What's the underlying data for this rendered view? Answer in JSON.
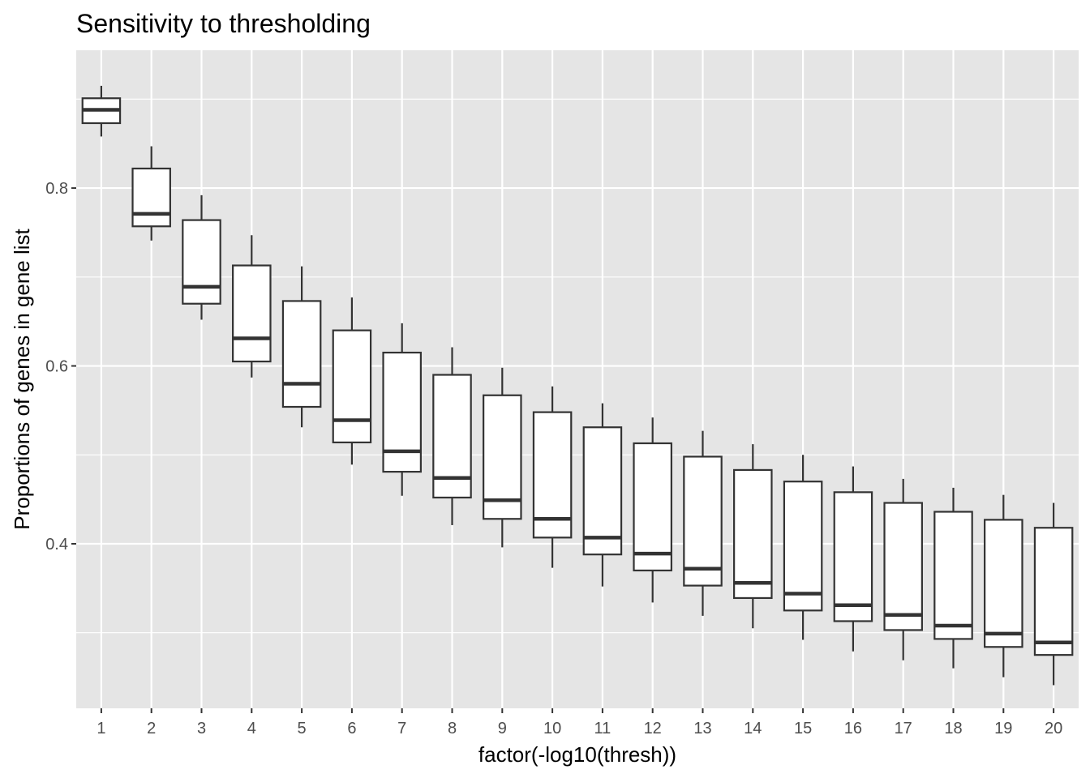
{
  "chart_data": {
    "type": "boxplot",
    "title": "Sensitivity to thresholding",
    "xlabel": "factor(-log10(thresh))",
    "ylabel": "Proportions of genes in gene list",
    "categories": [
      "1",
      "2",
      "3",
      "4",
      "5",
      "6",
      "7",
      "8",
      "9",
      "10",
      "11",
      "12",
      "13",
      "14",
      "15",
      "16",
      "17",
      "18",
      "19",
      "20"
    ],
    "ylim": [
      0.215,
      0.955
    ],
    "yticks": [
      0.4,
      0.6,
      0.8
    ],
    "ytick_labels": [
      "0.4",
      "0.6",
      "0.8"
    ],
    "grid": true,
    "colors": {
      "panel_background": "#e5e5e5",
      "grid_line": "#ffffff",
      "box_fill": "#ffffff",
      "box_stroke": "#333333",
      "tick_text": "#4d4d4d",
      "tick_mark": "#333333"
    },
    "boxes": [
      {
        "category": "1",
        "whisker_low": 0.858,
        "q1": 0.873,
        "median": 0.888,
        "q3": 0.901,
        "whisker_high": 0.915
      },
      {
        "category": "2",
        "whisker_low": 0.741,
        "q1": 0.757,
        "median": 0.771,
        "q3": 0.822,
        "whisker_high": 0.847
      },
      {
        "category": "3",
        "whisker_low": 0.652,
        "q1": 0.67,
        "median": 0.689,
        "q3": 0.764,
        "whisker_high": 0.792
      },
      {
        "category": "4",
        "whisker_low": 0.587,
        "q1": 0.605,
        "median": 0.631,
        "q3": 0.713,
        "whisker_high": 0.747
      },
      {
        "category": "5",
        "whisker_low": 0.531,
        "q1": 0.554,
        "median": 0.58,
        "q3": 0.673,
        "whisker_high": 0.712
      },
      {
        "category": "6",
        "whisker_low": 0.489,
        "q1": 0.514,
        "median": 0.539,
        "q3": 0.64,
        "whisker_high": 0.677
      },
      {
        "category": "7",
        "whisker_low": 0.454,
        "q1": 0.481,
        "median": 0.504,
        "q3": 0.615,
        "whisker_high": 0.648
      },
      {
        "category": "8",
        "whisker_low": 0.421,
        "q1": 0.452,
        "median": 0.474,
        "q3": 0.59,
        "whisker_high": 0.621
      },
      {
        "category": "9",
        "whisker_low": 0.396,
        "q1": 0.428,
        "median": 0.449,
        "q3": 0.567,
        "whisker_high": 0.598
      },
      {
        "category": "10",
        "whisker_low": 0.373,
        "q1": 0.407,
        "median": 0.428,
        "q3": 0.548,
        "whisker_high": 0.577
      },
      {
        "category": "11",
        "whisker_low": 0.352,
        "q1": 0.388,
        "median": 0.407,
        "q3": 0.531,
        "whisker_high": 0.558
      },
      {
        "category": "12",
        "whisker_low": 0.334,
        "q1": 0.37,
        "median": 0.389,
        "q3": 0.513,
        "whisker_high": 0.542
      },
      {
        "category": "13",
        "whisker_low": 0.319,
        "q1": 0.353,
        "median": 0.372,
        "q3": 0.498,
        "whisker_high": 0.527
      },
      {
        "category": "14",
        "whisker_low": 0.305,
        "q1": 0.339,
        "median": 0.356,
        "q3": 0.483,
        "whisker_high": 0.512
      },
      {
        "category": "15",
        "whisker_low": 0.292,
        "q1": 0.325,
        "median": 0.344,
        "q3": 0.47,
        "whisker_high": 0.5
      },
      {
        "category": "16",
        "whisker_low": 0.279,
        "q1": 0.313,
        "median": 0.331,
        "q3": 0.458,
        "whisker_high": 0.487
      },
      {
        "category": "17",
        "whisker_low": 0.269,
        "q1": 0.303,
        "median": 0.32,
        "q3": 0.446,
        "whisker_high": 0.473
      },
      {
        "category": "18",
        "whisker_low": 0.26,
        "q1": 0.293,
        "median": 0.308,
        "q3": 0.436,
        "whisker_high": 0.463
      },
      {
        "category": "19",
        "whisker_low": 0.25,
        "q1": 0.284,
        "median": 0.299,
        "q3": 0.427,
        "whisker_high": 0.455
      },
      {
        "category": "20",
        "whisker_low": 0.241,
        "q1": 0.275,
        "median": 0.289,
        "q3": 0.418,
        "whisker_high": 0.446
      }
    ]
  }
}
